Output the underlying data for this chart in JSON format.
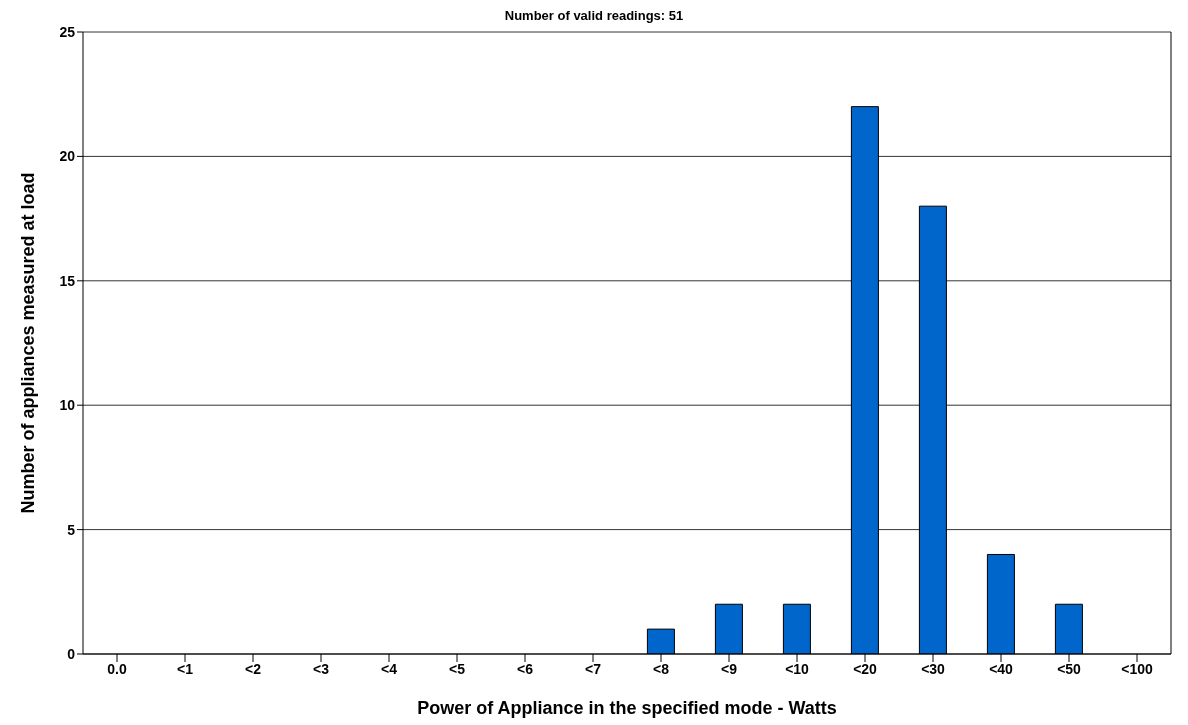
{
  "chart_data": {
    "type": "bar",
    "title": "Number of valid readings: 51",
    "xlabel": "Power of Appliance in the specified mode - Watts",
    "ylabel": "Number of appliances measured at load",
    "categories": [
      "0.0",
      "<1",
      "<2",
      "<3",
      "<4",
      "<5",
      "<6",
      "<7",
      "<8",
      "<9",
      "<10",
      "<20",
      "<30",
      "<40",
      "<50",
      "<100"
    ],
    "values": [
      0,
      0,
      0,
      0,
      0,
      0,
      0,
      0,
      1,
      2,
      2,
      22,
      18,
      4,
      2,
      0
    ],
    "color": "#0066cc",
    "ylim": [
      0,
      25
    ],
    "yticks": [
      0,
      5,
      10,
      15,
      20,
      25
    ],
    "grid": "y"
  }
}
